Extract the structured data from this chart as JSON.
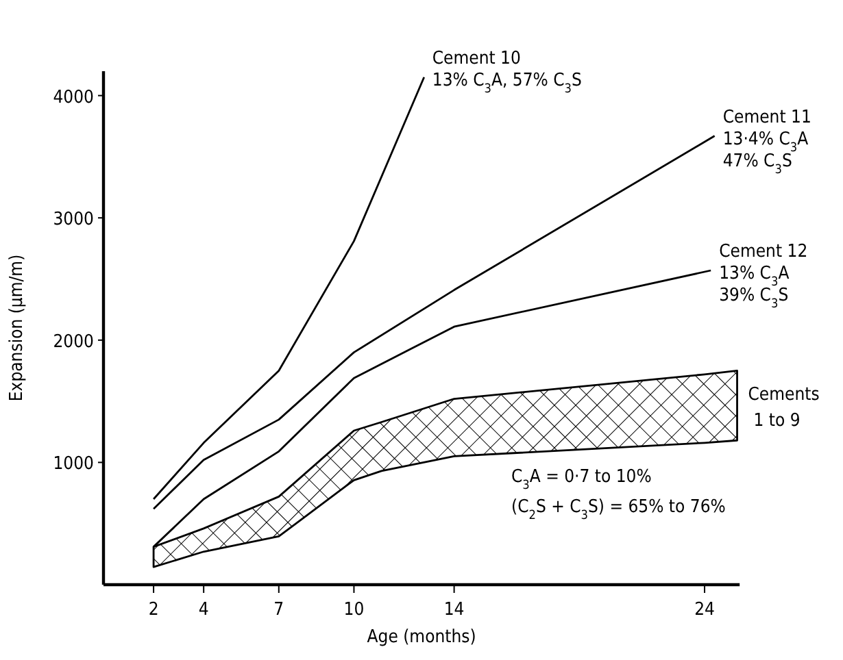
{
  "chart_data": {
    "type": "line",
    "xlabel": "Age (months)",
    "ylabel": "Expansion (µm/m)",
    "xlim": [
      0,
      25.4
    ],
    "ylim": [
      0,
      4200
    ],
    "xticks": [
      2,
      4,
      7,
      10,
      14,
      24
    ],
    "yticks": [
      1000,
      2000,
      3000,
      4000
    ],
    "grid": false,
    "marker": "none",
    "line_style": "solid",
    "series": [
      {
        "name": "Cement 10",
        "color": "#000000",
        "x": [
          2,
          4,
          7,
          10,
          12.8
        ],
        "values": [
          700,
          1160,
          1750,
          2810,
          4150
        ]
      },
      {
        "name": "Cement 11",
        "color": "#000000",
        "x": [
          2,
          4,
          7,
          10,
          14,
          24.4
        ],
        "values": [
          620,
          1020,
          1350,
          1900,
          2410,
          3670
        ]
      },
      {
        "name": "Cement 12",
        "color": "#000000",
        "x": [
          2,
          4,
          7,
          10,
          14,
          24.25
        ],
        "values": [
          310,
          700,
          1090,
          1690,
          2110,
          2570
        ]
      },
      {
        "name": "Cements 1 to 9",
        "type": "area",
        "color": "#000000",
        "x": [
          2,
          4,
          7,
          10,
          11.1,
          14,
          24,
          25.3
        ],
        "values": [
          null,
          null,
          null,
          null,
          null,
          null,
          null,
          null
        ],
        "upper": [
          310,
          460,
          720,
          1260,
          1330,
          1520,
          1720,
          1750
        ],
        "lower": [
          145,
          270,
          395,
          855,
          930,
          1050,
          1160,
          1180
        ]
      }
    ],
    "annotations": [
      "13% C$_{3}$A, 57% C$_{3}$S",
      "13·4% C$_{3}$A\n47% C$_{3}$S",
      "13% C$_{3}$A\n39% C$_{3}$S",
      "C$_{3}$A = 0·7 to 10%\n(C$_{2}$S + C$_{3}$S) = 65% to 76%"
    ]
  }
}
